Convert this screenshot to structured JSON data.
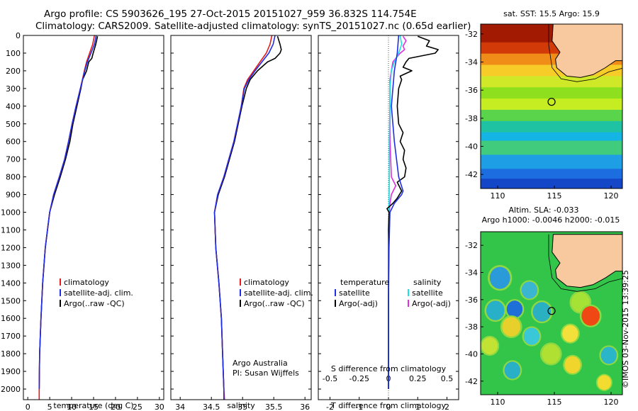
{
  "header": {
    "line1": "Argo profile: CS 5903626_195 27-Oct-2015 20151027_959 36.832S 114.754E",
    "line2": "Climatology: CARS2009. Satellite-adjusted climatology: synTS_20151027.nc (0.65d earlier)"
  },
  "footer": {
    "stamp": "©IMOS 03-Nov-2015 13:39:25"
  },
  "colors": {
    "climatology": "#e21b1b",
    "satellite": "#1f2ee6",
    "argo": "#000000",
    "sal_satellite": "#18e2e6",
    "sal_argo": "#e02de0"
  },
  "chart_data": [
    {
      "type": "line",
      "id": "temperature",
      "xlabel": "temperature (deg C)",
      "xlim": [
        -1,
        31
      ],
      "xticks": [
        0,
        5,
        10,
        15,
        20,
        25,
        30
      ],
      "ylim": [
        2060,
        0
      ],
      "yticks": [
        0,
        100,
        200,
        300,
        400,
        500,
        600,
        700,
        800,
        900,
        1000,
        1100,
        1200,
        1300,
        1400,
        1500,
        1600,
        1700,
        1800,
        1900,
        2000
      ],
      "legend": [
        "climatology",
        "satellite-adj. clim.",
        "Argo(..raw -QC)"
      ],
      "series": [
        {
          "name": "climatology",
          "y": [
            0,
            50,
            100,
            150,
            200,
            300,
            400,
            500,
            600,
            700,
            800,
            900,
            1000,
            1200,
            1400,
            1600,
            1800,
            2000,
            2060
          ],
          "x": [
            15.2,
            14.8,
            14.1,
            13.4,
            12.9,
            12.0,
            11.0,
            10.1,
            9.3,
            8.4,
            7.2,
            5.9,
            5.0,
            4.0,
            3.4,
            3.0,
            2.7,
            2.6,
            2.6
          ]
        },
        {
          "name": "satellite-adj. clim.",
          "y": [
            0,
            50,
            100,
            150,
            200,
            300,
            400,
            500,
            600,
            700,
            800,
            900,
            1000,
            1200,
            1400,
            1600,
            1800,
            2000
          ],
          "x": [
            15.6,
            15.2,
            14.4,
            13.6,
            13.0,
            12.0,
            11.0,
            10.1,
            9.3,
            8.4,
            7.2,
            5.9,
            5.0,
            4.0,
            3.4,
            3.0,
            2.7,
            2.6
          ]
        },
        {
          "name": "Argo(..raw -QC)",
          "y": [
            5,
            50,
            100,
            130,
            150,
            200,
            250,
            300,
            400,
            500,
            600,
            700,
            800,
            900,
            1000,
            1200,
            1400,
            1600,
            1800,
            2000
          ],
          "x": [
            15.9,
            15.5,
            14.9,
            14.6,
            13.9,
            13.4,
            12.5,
            12.1,
            11.2,
            10.3,
            9.6,
            8.6,
            7.4,
            6.1,
            5.0,
            4.0,
            3.4,
            3.0,
            2.7,
            2.6
          ]
        }
      ]
    },
    {
      "type": "line",
      "id": "salinity",
      "xlabel": "salinity",
      "xlim": [
        33.85,
        36.1
      ],
      "xticks": [
        34,
        34.5,
        35,
        35.5,
        36
      ],
      "ylim": [
        2060,
        0
      ],
      "legend": [
        "climatology",
        "satellite-adj. clim.",
        "Argo(..raw -QC)"
      ],
      "annotations": [
        "Argo Australia",
        "PI: Susan Wijffels"
      ],
      "series": [
        {
          "name": "climatology",
          "y": [
            0,
            50,
            100,
            150,
            200,
            250,
            300,
            400,
            500,
            600,
            700,
            800,
            900,
            1000,
            1200,
            1400,
            1600,
            1800,
            2000,
            2060
          ],
          "x": [
            35.47,
            35.44,
            35.38,
            35.28,
            35.18,
            35.08,
            35.02,
            34.98,
            34.92,
            34.86,
            34.78,
            34.7,
            34.6,
            34.55,
            34.57,
            34.62,
            34.66,
            34.68,
            34.7,
            34.71
          ]
        },
        {
          "name": "satellite-adj. clim.",
          "y": [
            0,
            50,
            100,
            150,
            200,
            250,
            300,
            400,
            500,
            600,
            700,
            800,
            900,
            1000,
            1200,
            1400,
            1600,
            1800,
            2000,
            2060
          ],
          "x": [
            35.52,
            35.49,
            35.42,
            35.31,
            35.2,
            35.1,
            35.03,
            34.98,
            34.92,
            34.86,
            34.78,
            34.7,
            34.6,
            34.55,
            34.57,
            34.62,
            34.66,
            34.68,
            34.7,
            34.7
          ]
        },
        {
          "name": "Argo(..raw -QC)",
          "y": [
            5,
            50,
            80,
            100,
            130,
            150,
            200,
            250,
            300,
            400,
            500,
            600,
            700,
            800,
            900,
            1000,
            1200,
            1400,
            1600,
            1800,
            2000
          ],
          "x": [
            35.56,
            35.6,
            35.62,
            35.6,
            35.52,
            35.4,
            35.24,
            35.12,
            35.06,
            34.99,
            34.93,
            34.87,
            34.79,
            34.71,
            34.61,
            34.55,
            34.57,
            34.62,
            34.66,
            34.68,
            34.7
          ]
        }
      ]
    },
    {
      "type": "line",
      "id": "difference",
      "xlabel": "T difference from climatology",
      "xlabel2": "S difference from climatology",
      "xlim": [
        -2.4,
        2.4
      ],
      "xticks": [
        -2,
        -1,
        0,
        1,
        2
      ],
      "x2ticks": [
        -0.5,
        -0.25,
        0,
        0.25,
        0.5
      ],
      "ylim": [
        2060,
        0
      ],
      "legend_headings": [
        "temperature",
        "salinity"
      ],
      "legend": [
        "satellite",
        "Argo(-adj)",
        "satellite",
        "Argo(-adj)"
      ],
      "series": [
        {
          "name": "temperature satellite",
          "y": [
            0,
            100,
            200,
            300,
            400,
            600,
            800,
            880,
            900,
            950,
            1000,
            1200,
            1500,
            2000
          ],
          "x": [
            0.35,
            0.3,
            0.2,
            0.15,
            0.1,
            0.2,
            0.35,
            0.5,
            0.45,
            0.2,
            0.05,
            0.02,
            0.0,
            0.0
          ]
        },
        {
          "name": "temperature Argo(-adj)",
          "y": [
            5,
            30,
            60,
            80,
            100,
            130,
            150,
            180,
            200,
            230,
            250,
            300,
            400,
            500,
            550,
            600,
            650,
            700,
            750,
            800,
            830,
            880,
            920,
            950,
            980,
            1000,
            1100,
            1200,
            1500,
            2000
          ],
          "x": [
            1.0,
            1.4,
            1.3,
            1.7,
            1.6,
            0.7,
            0.6,
            0.5,
            0.8,
            0.4,
            0.45,
            0.35,
            0.3,
            0.35,
            0.5,
            0.4,
            0.55,
            0.5,
            0.6,
            0.55,
            0.3,
            0.45,
            0.3,
            0.15,
            -0.05,
            0.02,
            0.0,
            0.01,
            0.0,
            0.0
          ]
        },
        {
          "name": "salinity satellite",
          "y": [
            0,
            50,
            100,
            150,
            200,
            300,
            400,
            600,
            800,
            1000,
            1200,
            1500,
            2000
          ],
          "x": [
            0.4,
            0.45,
            0.35,
            0.2,
            0.1,
            0.05,
            0.05,
            0.03,
            0.03,
            0.02,
            0.0,
            0.0,
            0.0
          ]
        },
        {
          "name": "salinity Argo(-adj)",
          "y": [
            5,
            30,
            60,
            80,
            100,
            130,
            150,
            200,
            250,
            300,
            400,
            600,
            800,
            850,
            900,
            950,
            1000,
            1200,
            1500,
            2000
          ],
          "x": [
            0.5,
            0.6,
            0.5,
            0.55,
            0.4,
            0.25,
            0.15,
            0.1,
            0.05,
            0.05,
            0.05,
            0.05,
            0.1,
            0.25,
            0.1,
            0.05,
            0.03,
            0.0,
            0.0,
            0.0
          ]
        }
      ]
    },
    {
      "type": "heatmap",
      "id": "sst-map",
      "title": "sat. SST: 15.5 Argo: 15.9",
      "xlim": [
        108.5,
        121
      ],
      "ylim": [
        -43,
        -31.3
      ],
      "xticks": [
        110,
        115,
        120
      ],
      "yticks": [
        -32,
        -34,
        -36,
        -38,
        -40,
        -42
      ],
      "argo_position": {
        "lon": 114.754,
        "lat": -36.832
      },
      "bands": [
        {
          "lat_top": -31.3,
          "color": "#a31a02"
        },
        {
          "lat_top": -32.6,
          "color": "#d23a08"
        },
        {
          "lat_top": -33.4,
          "color": "#f08c18"
        },
        {
          "lat_top": -34.2,
          "color": "#f8cc28"
        },
        {
          "lat_top": -35.0,
          "color": "#cfe828"
        },
        {
          "lat_top": -35.8,
          "color": "#8ee01e"
        },
        {
          "lat_top": -36.6,
          "color": "#c6ec22"
        },
        {
          "lat_top": -37.4,
          "color": "#5ad44a"
        },
        {
          "lat_top": -38.2,
          "color": "#20c2a4"
        },
        {
          "lat_top": -39.0,
          "color": "#14b4e4"
        },
        {
          "lat_top": -39.6,
          "color": "#40cc7c"
        },
        {
          "lat_top": -40.6,
          "color": "#1e9ee4"
        },
        {
          "lat_top": -41.6,
          "color": "#1c6ee0"
        },
        {
          "lat_top": -42.3,
          "color": "#1446c8"
        }
      ]
    },
    {
      "type": "heatmap",
      "id": "sla-map",
      "title": "Altim. SLA: -0.033",
      "subtitle": "Argo h1000: -0.0046 h2000: -0.015",
      "xlim": [
        108.5,
        121
      ],
      "ylim": [
        -43,
        -31
      ],
      "xticks": [
        110,
        115,
        120
      ],
      "yticks": [
        -32,
        -34,
        -36,
        -38,
        -40,
        -42
      ],
      "argo_position": {
        "lon": 114.754,
        "lat": -36.832
      },
      "background": "#33c44a",
      "blobs": [
        {
          "lon": 110.2,
          "lat": -34.4,
          "r": 0.9,
          "color": "#2a9ad8"
        },
        {
          "lon": 112.8,
          "lat": -35.3,
          "r": 0.7,
          "color": "#3ab6d0"
        },
        {
          "lon": 109.8,
          "lat": -36.8,
          "r": 0.8,
          "color": "#28b0c8"
        },
        {
          "lon": 111.5,
          "lat": -36.7,
          "r": 0.7,
          "color": "#1e70d8"
        },
        {
          "lon": 113.9,
          "lat": -36.9,
          "r": 0.8,
          "color": "#2ab0c0"
        },
        {
          "lon": 117.3,
          "lat": -36.2,
          "r": 0.8,
          "color": "#a6e236"
        },
        {
          "lon": 118.2,
          "lat": -37.2,
          "r": 0.8,
          "color": "#f04814"
        },
        {
          "lon": 111.2,
          "lat": -38.0,
          "r": 0.8,
          "color": "#e8d02c"
        },
        {
          "lon": 113.0,
          "lat": -38.7,
          "r": 0.7,
          "color": "#3ac8d8"
        },
        {
          "lon": 116.4,
          "lat": -38.5,
          "r": 0.7,
          "color": "#f4e03a"
        },
        {
          "lon": 109.3,
          "lat": -39.4,
          "r": 0.7,
          "color": "#c2e234"
        },
        {
          "lon": 114.7,
          "lat": -40.0,
          "r": 0.8,
          "color": "#b0e032"
        },
        {
          "lon": 116.6,
          "lat": -40.8,
          "r": 0.7,
          "color": "#f0d62c"
        },
        {
          "lon": 119.8,
          "lat": -40.1,
          "r": 0.7,
          "color": "#2ab6c8"
        },
        {
          "lon": 111.3,
          "lat": -41.2,
          "r": 0.7,
          "color": "#2ab0c6"
        },
        {
          "lon": 119.4,
          "lat": -42.1,
          "r": 0.6,
          "color": "#f2dc30"
        }
      ]
    }
  ]
}
